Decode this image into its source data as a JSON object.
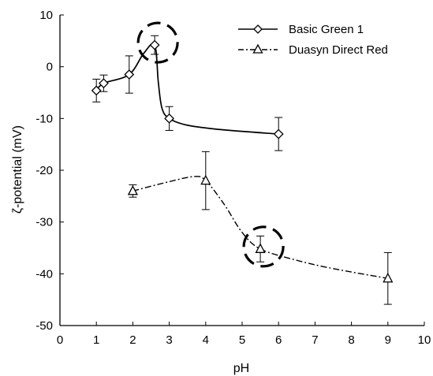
{
  "chart_data": {
    "type": "scatter",
    "xlabel": "pH",
    "ylabel": "ζ-potential (mV)",
    "xlim": [
      0,
      10
    ],
    "ylim": [
      -50,
      10
    ],
    "xticks": [
      "0",
      "1",
      "2",
      "3",
      "4",
      "5",
      "6",
      "7",
      "8",
      "9",
      "10"
    ],
    "yticks": [
      "10",
      "0",
      "-10",
      "-20",
      "-30",
      "-40",
      "-50"
    ],
    "grid": false,
    "legend_position": "top-right",
    "series": [
      {
        "name": "Basic Green 1",
        "marker": "diamond",
        "line_style": "solid",
        "color": "#000000",
        "x": [
          1.0,
          1.2,
          1.9,
          2.6,
          3.0,
          6.0
        ],
        "y": [
          -4.6,
          -3.2,
          -1.5,
          4.2,
          -10.0,
          -13.0
        ],
        "error": [
          2.2,
          1.6,
          3.6,
          1.8,
          2.3,
          3.2
        ],
        "curve_x": [
          1.0,
          1.2,
          1.9,
          2.3,
          2.6,
          2.7,
          2.8,
          3.0,
          3.5,
          4.5,
          6.0
        ],
        "curve_y": [
          -4.6,
          -3.2,
          -1.5,
          2.6,
          4.2,
          -3.0,
          -8.0,
          -10.0,
          -11.3,
          -12.2,
          -13.0
        ],
        "highlighted_point_index": 3
      },
      {
        "name": "Duasyn Direct Red",
        "marker": "triangle",
        "line_style": "dash-dot",
        "color": "#000000",
        "x": [
          2.0,
          4.0,
          5.5,
          9.0
        ],
        "y": [
          -24.0,
          -22.0,
          -35.2,
          -40.9
        ],
        "error": [
          1.2,
          5.6,
          2.5,
          5.0
        ],
        "curve_x": [
          2.0,
          3.0,
          3.7,
          4.0,
          4.5,
          5.0,
          5.5,
          6.5,
          7.5,
          9.0
        ],
        "curve_y": [
          -24.0,
          -22.2,
          -21.2,
          -22.0,
          -26.5,
          -32.0,
          -35.2,
          -37.4,
          -39.0,
          -40.9
        ],
        "highlighted_point_index": 2
      }
    ]
  }
}
